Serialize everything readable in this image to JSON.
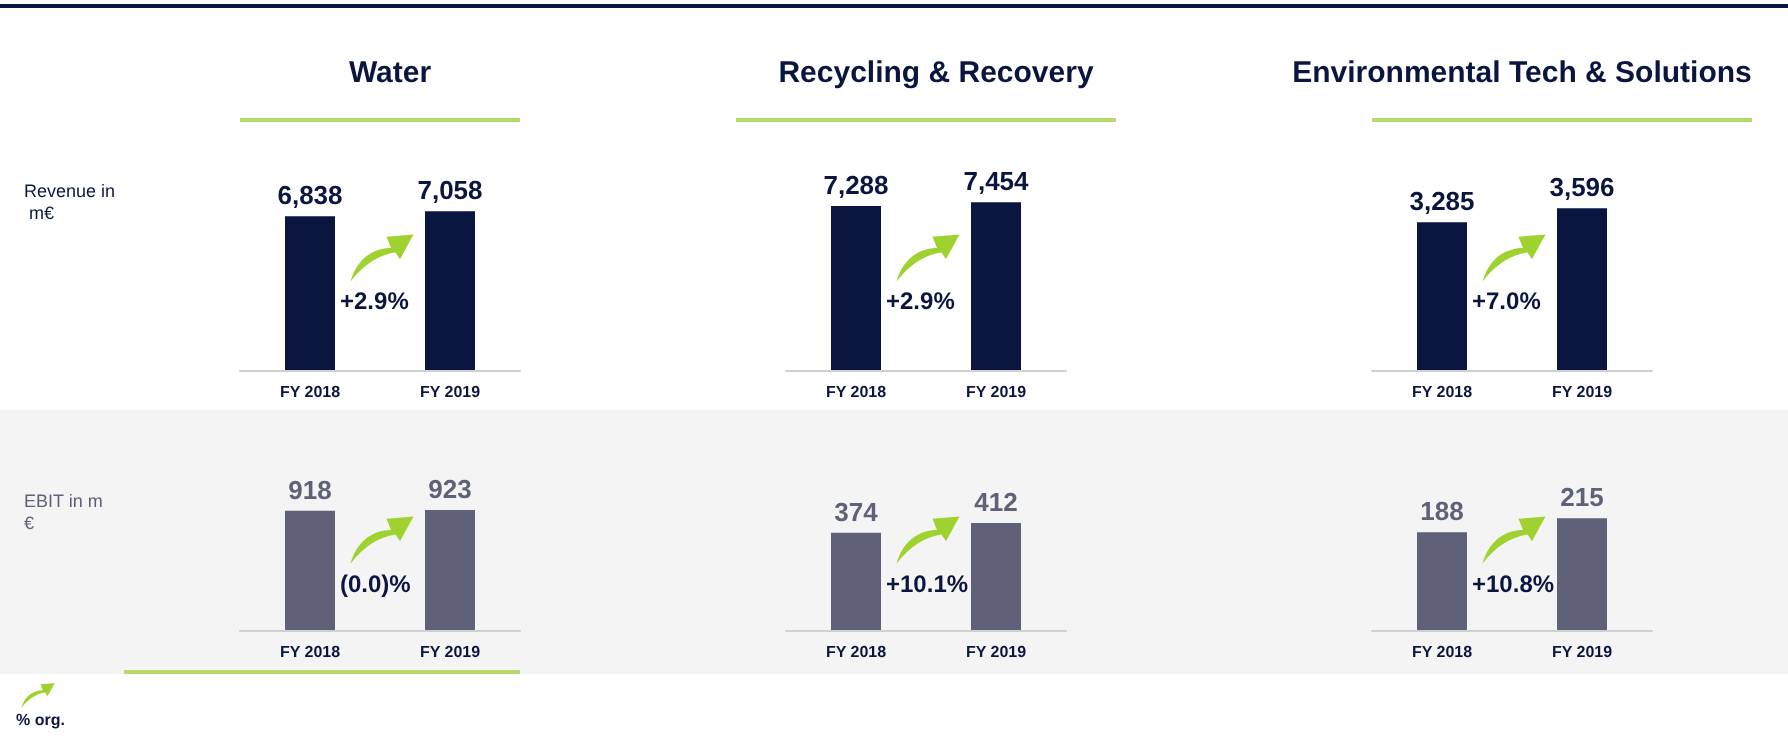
{
  "chart_data": [
    {
      "type": "bar",
      "title": "Water",
      "ylabel": "Revenue in m€",
      "categories": [
        "FY 2018",
        "FY 2019"
      ],
      "values": [
        6838,
        7058
      ],
      "value_labels": [
        "6,838",
        "7,058"
      ],
      "color": "#0b1640",
      "annotations": [
        "+2.9%"
      ]
    },
    {
      "type": "bar",
      "title": "Recycling & Recovery",
      "categories": [
        "FY 2018",
        "FY 2019"
      ],
      "values": [
        7288,
        7454
      ],
      "value_labels": [
        "7,288",
        "7,454"
      ],
      "color": "#0b1640",
      "annotations": [
        "+2.9%"
      ]
    },
    {
      "type": "bar",
      "title": "Environmental Tech & Solutions",
      "categories": [
        "FY 2018",
        "FY 2019"
      ],
      "values": [
        3285,
        3596
      ],
      "value_labels": [
        "3,285",
        "3,596"
      ],
      "color": "#0b1640",
      "annotations": [
        "+7.0%"
      ]
    },
    {
      "type": "bar",
      "ylabel": "EBIT in m€",
      "categories": [
        "FY 2018",
        "FY 2019"
      ],
      "values": [
        918,
        923
      ],
      "color": "#5f6178",
      "data_labels": true,
      "annotations": [
        "(0.0)%",
        "% org."
      ]
    },
    {
      "type": "bar",
      "categories": [
        "FY 2018",
        "FY 2019"
      ],
      "values": [
        374,
        412
      ],
      "color": "#5f6178",
      "data_labels": true,
      "annotations": [
        "+10.1%"
      ]
    },
    {
      "type": "bar",
      "categories": [
        "FY 2018",
        "FY 2019"
      ],
      "values": [
        188,
        215
      ],
      "color": "#5f6178",
      "data_labels": true,
      "annotations": [
        "+10.8%"
      ]
    }
  ]
}
